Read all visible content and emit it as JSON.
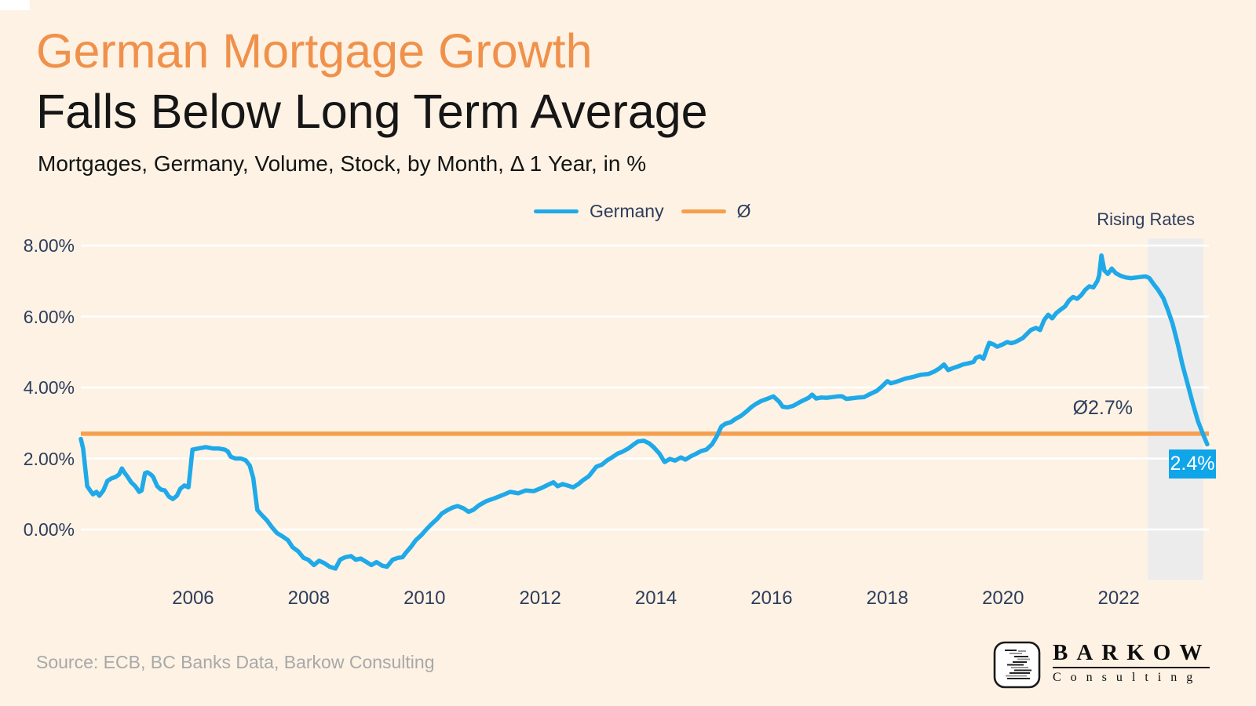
{
  "header": {
    "title": "German Mortgage Growth",
    "subtitle": "Falls Below Long Term Average",
    "description": "Mortgages, Germany, Volume, Stock, by Month, Δ 1 Year, in %"
  },
  "legend": {
    "items": [
      {
        "label": "Germany",
        "color": "#1FA9E8"
      },
      {
        "label": "Ø",
        "color": "#F5A04F"
      }
    ]
  },
  "annotations": {
    "rising_rates": "Rising Rates",
    "average_label": "Ø2.7%",
    "last_value_label": "2.4%"
  },
  "footer": {
    "source": "Source: ECB, BC Banks Data, Barkow Consulting"
  },
  "logo": {
    "wordmark": "BARKOW",
    "subtext": "Consulting",
    "mark_icon": "lines-glyph-icon"
  },
  "colors": {
    "background": "#FDF2E4",
    "title_orange": "#F0914B",
    "title_black": "#161616",
    "navy_text": "#2E3D5C",
    "germany_line": "#1FA9E8",
    "average_line": "#F5A04F",
    "gridline": "#FFFFFF",
    "highlight_band": "#ECECEC",
    "badge_bg": "#10A5E8",
    "source_gray": "#A8A8A8"
  },
  "chart_data": {
    "type": "line",
    "title": "German Mortgage Growth Falls Below Long Term Average",
    "subtitle": "Mortgages, Germany, Volume, Stock, by Month, Δ 1 Year, in %",
    "xlabel": "",
    "ylabel": "",
    "grid": "horizontal white gridlines",
    "legend_position": "top-center",
    "xlim": [
      2004.06,
      2023.56
    ],
    "ylim": [
      -1.5,
      8.4
    ],
    "x_ticks": [
      {
        "value": 2006,
        "label": "2006"
      },
      {
        "value": 2008,
        "label": "2008"
      },
      {
        "value": 2010,
        "label": "2010"
      },
      {
        "value": 2012,
        "label": "2012"
      },
      {
        "value": 2014,
        "label": "2014"
      },
      {
        "value": 2016,
        "label": "2016"
      },
      {
        "value": 2018,
        "label": "2018"
      },
      {
        "value": 2020,
        "label": "2020"
      },
      {
        "value": 2022,
        "label": "2022"
      }
    ],
    "y_ticks": [
      {
        "value": 8,
        "label": "8.00%"
      },
      {
        "value": 6,
        "label": "6.00%"
      },
      {
        "value": 4,
        "label": "4.00%"
      },
      {
        "value": 2,
        "label": "2.00%"
      },
      {
        "value": 0,
        "label": "0.00%"
      }
    ],
    "average_line": {
      "value": 2.7,
      "label": "Ø2.7%",
      "color": "#F5A04F"
    },
    "highlight_band": {
      "from": 2022.5,
      "to": 2023.46,
      "label": "Rising Rates",
      "color": "#ECECEC"
    },
    "last_point": {
      "x": 2023.53,
      "value": 2.4,
      "label": "2.4%"
    },
    "series": [
      {
        "name": "Germany",
        "color": "#1FA9E8",
        "points": [
          [
            2004.06,
            2.55
          ],
          [
            2004.1,
            2.28
          ],
          [
            2004.17,
            1.22
          ],
          [
            2004.22,
            1.1
          ],
          [
            2004.27,
            0.99
          ],
          [
            2004.33,
            1.06
          ],
          [
            2004.38,
            0.95
          ],
          [
            2004.45,
            1.1
          ],
          [
            2004.52,
            1.37
          ],
          [
            2004.59,
            1.44
          ],
          [
            2004.66,
            1.48
          ],
          [
            2004.72,
            1.55
          ],
          [
            2004.77,
            1.72
          ],
          [
            2004.81,
            1.61
          ],
          [
            2004.86,
            1.5
          ],
          [
            2004.93,
            1.33
          ],
          [
            2005.0,
            1.22
          ],
          [
            2005.07,
            1.06
          ],
          [
            2005.11,
            1.1
          ],
          [
            2005.17,
            1.59
          ],
          [
            2005.21,
            1.61
          ],
          [
            2005.27,
            1.55
          ],
          [
            2005.31,
            1.48
          ],
          [
            2005.38,
            1.22
          ],
          [
            2005.44,
            1.13
          ],
          [
            2005.51,
            1.1
          ],
          [
            2005.58,
            0.93
          ],
          [
            2005.65,
            0.86
          ],
          [
            2005.72,
            0.95
          ],
          [
            2005.78,
            1.15
          ],
          [
            2005.85,
            1.24
          ],
          [
            2005.92,
            1.19
          ],
          [
            2005.99,
            2.25
          ],
          [
            2006.08,
            2.28
          ],
          [
            2006.22,
            2.32
          ],
          [
            2006.35,
            2.28
          ],
          [
            2006.45,
            2.28
          ],
          [
            2006.55,
            2.25
          ],
          [
            2006.6,
            2.2
          ],
          [
            2006.65,
            2.05
          ],
          [
            2006.73,
            2.0
          ],
          [
            2006.83,
            2.0
          ],
          [
            2006.91,
            1.95
          ],
          [
            2006.98,
            1.8
          ],
          [
            2007.04,
            1.45
          ],
          [
            2007.11,
            0.55
          ],
          [
            2007.18,
            0.42
          ],
          [
            2007.28,
            0.25
          ],
          [
            2007.37,
            0.05
          ],
          [
            2007.45,
            -0.1
          ],
          [
            2007.55,
            -0.2
          ],
          [
            2007.64,
            -0.3
          ],
          [
            2007.72,
            -0.5
          ],
          [
            2007.82,
            -0.62
          ],
          [
            2007.91,
            -0.8
          ],
          [
            2007.99,
            -0.85
          ],
          [
            2008.09,
            -1.0
          ],
          [
            2008.18,
            -0.88
          ],
          [
            2008.27,
            -0.95
          ],
          [
            2008.36,
            -1.05
          ],
          [
            2008.46,
            -1.1
          ],
          [
            2008.54,
            -0.85
          ],
          [
            2008.63,
            -0.78
          ],
          [
            2008.73,
            -0.75
          ],
          [
            2008.81,
            -0.85
          ],
          [
            2008.9,
            -0.82
          ],
          [
            2009.0,
            -0.92
          ],
          [
            2009.08,
            -1.0
          ],
          [
            2009.17,
            -0.92
          ],
          [
            2009.27,
            -1.02
          ],
          [
            2009.35,
            -1.05
          ],
          [
            2009.45,
            -0.85
          ],
          [
            2009.54,
            -0.8
          ],
          [
            2009.62,
            -0.78
          ],
          [
            2009.68,
            -0.65
          ],
          [
            2009.76,
            -0.5
          ],
          [
            2009.85,
            -0.3
          ],
          [
            2009.95,
            -0.15
          ],
          [
            2010.03,
            0.0
          ],
          [
            2010.12,
            0.15
          ],
          [
            2010.22,
            0.3
          ],
          [
            2010.3,
            0.45
          ],
          [
            2010.4,
            0.55
          ],
          [
            2010.49,
            0.62
          ],
          [
            2010.57,
            0.66
          ],
          [
            2010.67,
            0.6
          ],
          [
            2010.76,
            0.5
          ],
          [
            2010.84,
            0.55
          ],
          [
            2010.94,
            0.68
          ],
          [
            2011.07,
            0.8
          ],
          [
            2011.21,
            0.88
          ],
          [
            2011.35,
            0.97
          ],
          [
            2011.48,
            1.06
          ],
          [
            2011.62,
            1.02
          ],
          [
            2011.75,
            1.1
          ],
          [
            2011.89,
            1.08
          ],
          [
            2012.02,
            1.17
          ],
          [
            2012.16,
            1.28
          ],
          [
            2012.23,
            1.33
          ],
          [
            2012.3,
            1.22
          ],
          [
            2012.39,
            1.28
          ],
          [
            2012.47,
            1.24
          ],
          [
            2012.57,
            1.19
          ],
          [
            2012.66,
            1.28
          ],
          [
            2012.74,
            1.39
          ],
          [
            2012.84,
            1.5
          ],
          [
            2012.97,
            1.77
          ],
          [
            2013.07,
            1.83
          ],
          [
            2013.15,
            1.94
          ],
          [
            2013.24,
            2.03
          ],
          [
            2013.34,
            2.14
          ],
          [
            2013.42,
            2.19
          ],
          [
            2013.52,
            2.28
          ],
          [
            2013.61,
            2.39
          ],
          [
            2013.69,
            2.48
          ],
          [
            2013.79,
            2.5
          ],
          [
            2013.88,
            2.43
          ],
          [
            2013.96,
            2.32
          ],
          [
            2014.06,
            2.14
          ],
          [
            2014.15,
            1.9
          ],
          [
            2014.24,
            1.99
          ],
          [
            2014.33,
            1.94
          ],
          [
            2014.43,
            2.03
          ],
          [
            2014.51,
            1.97
          ],
          [
            2014.6,
            2.06
          ],
          [
            2014.7,
            2.14
          ],
          [
            2014.78,
            2.21
          ],
          [
            2014.87,
            2.25
          ],
          [
            2014.97,
            2.4
          ],
          [
            2015.05,
            2.62
          ],
          [
            2015.13,
            2.9
          ],
          [
            2015.2,
            2.98
          ],
          [
            2015.29,
            3.02
          ],
          [
            2015.38,
            3.12
          ],
          [
            2015.47,
            3.2
          ],
          [
            2015.56,
            3.32
          ],
          [
            2015.65,
            3.45
          ],
          [
            2015.74,
            3.55
          ],
          [
            2015.82,
            3.62
          ],
          [
            2015.92,
            3.68
          ],
          [
            2016.03,
            3.75
          ],
          [
            2016.13,
            3.6
          ],
          [
            2016.19,
            3.46
          ],
          [
            2016.27,
            3.44
          ],
          [
            2016.37,
            3.48
          ],
          [
            2016.5,
            3.6
          ],
          [
            2016.64,
            3.71
          ],
          [
            2016.7,
            3.8
          ],
          [
            2016.77,
            3.69
          ],
          [
            2016.86,
            3.72
          ],
          [
            2016.95,
            3.71
          ],
          [
            2017.05,
            3.73
          ],
          [
            2017.14,
            3.75
          ],
          [
            2017.22,
            3.75
          ],
          [
            2017.29,
            3.68
          ],
          [
            2017.4,
            3.7
          ],
          [
            2017.5,
            3.72
          ],
          [
            2017.6,
            3.73
          ],
          [
            2017.68,
            3.8
          ],
          [
            2017.82,
            3.91
          ],
          [
            2017.9,
            4.02
          ],
          [
            2018.0,
            4.18
          ],
          [
            2018.06,
            4.12
          ],
          [
            2018.15,
            4.16
          ],
          [
            2018.31,
            4.25
          ],
          [
            2018.45,
            4.3
          ],
          [
            2018.58,
            4.36
          ],
          [
            2018.71,
            4.38
          ],
          [
            2018.81,
            4.45
          ],
          [
            2018.9,
            4.54
          ],
          [
            2018.98,
            4.65
          ],
          [
            2019.05,
            4.49
          ],
          [
            2019.14,
            4.55
          ],
          [
            2019.23,
            4.6
          ],
          [
            2019.31,
            4.65
          ],
          [
            2019.4,
            4.68
          ],
          [
            2019.49,
            4.72
          ],
          [
            2019.53,
            4.83
          ],
          [
            2019.6,
            4.88
          ],
          [
            2019.66,
            4.81
          ],
          [
            2019.76,
            5.26
          ],
          [
            2019.83,
            5.22
          ],
          [
            2019.9,
            5.15
          ],
          [
            2020.0,
            5.22
          ],
          [
            2020.07,
            5.28
          ],
          [
            2020.14,
            5.25
          ],
          [
            2020.21,
            5.28
          ],
          [
            2020.34,
            5.39
          ],
          [
            2020.48,
            5.62
          ],
          [
            2020.57,
            5.68
          ],
          [
            2020.64,
            5.62
          ],
          [
            2020.71,
            5.9
          ],
          [
            2020.78,
            6.05
          ],
          [
            2020.85,
            5.95
          ],
          [
            2020.92,
            6.1
          ],
          [
            2021.0,
            6.2
          ],
          [
            2021.07,
            6.28
          ],
          [
            2021.14,
            6.45
          ],
          [
            2021.21,
            6.55
          ],
          [
            2021.28,
            6.5
          ],
          [
            2021.35,
            6.6
          ],
          [
            2021.42,
            6.75
          ],
          [
            2021.49,
            6.85
          ],
          [
            2021.56,
            6.82
          ],
          [
            2021.63,
            7.0
          ],
          [
            2021.66,
            7.15
          ],
          [
            2021.7,
            7.72
          ],
          [
            2021.75,
            7.3
          ],
          [
            2021.81,
            7.2
          ],
          [
            2021.88,
            7.35
          ],
          [
            2021.95,
            7.22
          ],
          [
            2022.03,
            7.15
          ],
          [
            2022.12,
            7.1
          ],
          [
            2022.21,
            7.08
          ],
          [
            2022.31,
            7.1
          ],
          [
            2022.4,
            7.12
          ],
          [
            2022.47,
            7.13
          ],
          [
            2022.53,
            7.08
          ],
          [
            2022.6,
            6.92
          ],
          [
            2022.68,
            6.75
          ],
          [
            2022.77,
            6.52
          ],
          [
            2022.85,
            6.18
          ],
          [
            2022.93,
            5.8
          ],
          [
            2023.02,
            5.22
          ],
          [
            2023.1,
            4.65
          ],
          [
            2023.19,
            4.1
          ],
          [
            2023.28,
            3.55
          ],
          [
            2023.37,
            3.05
          ],
          [
            2023.46,
            2.67
          ],
          [
            2023.53,
            2.4
          ]
        ]
      }
    ]
  }
}
